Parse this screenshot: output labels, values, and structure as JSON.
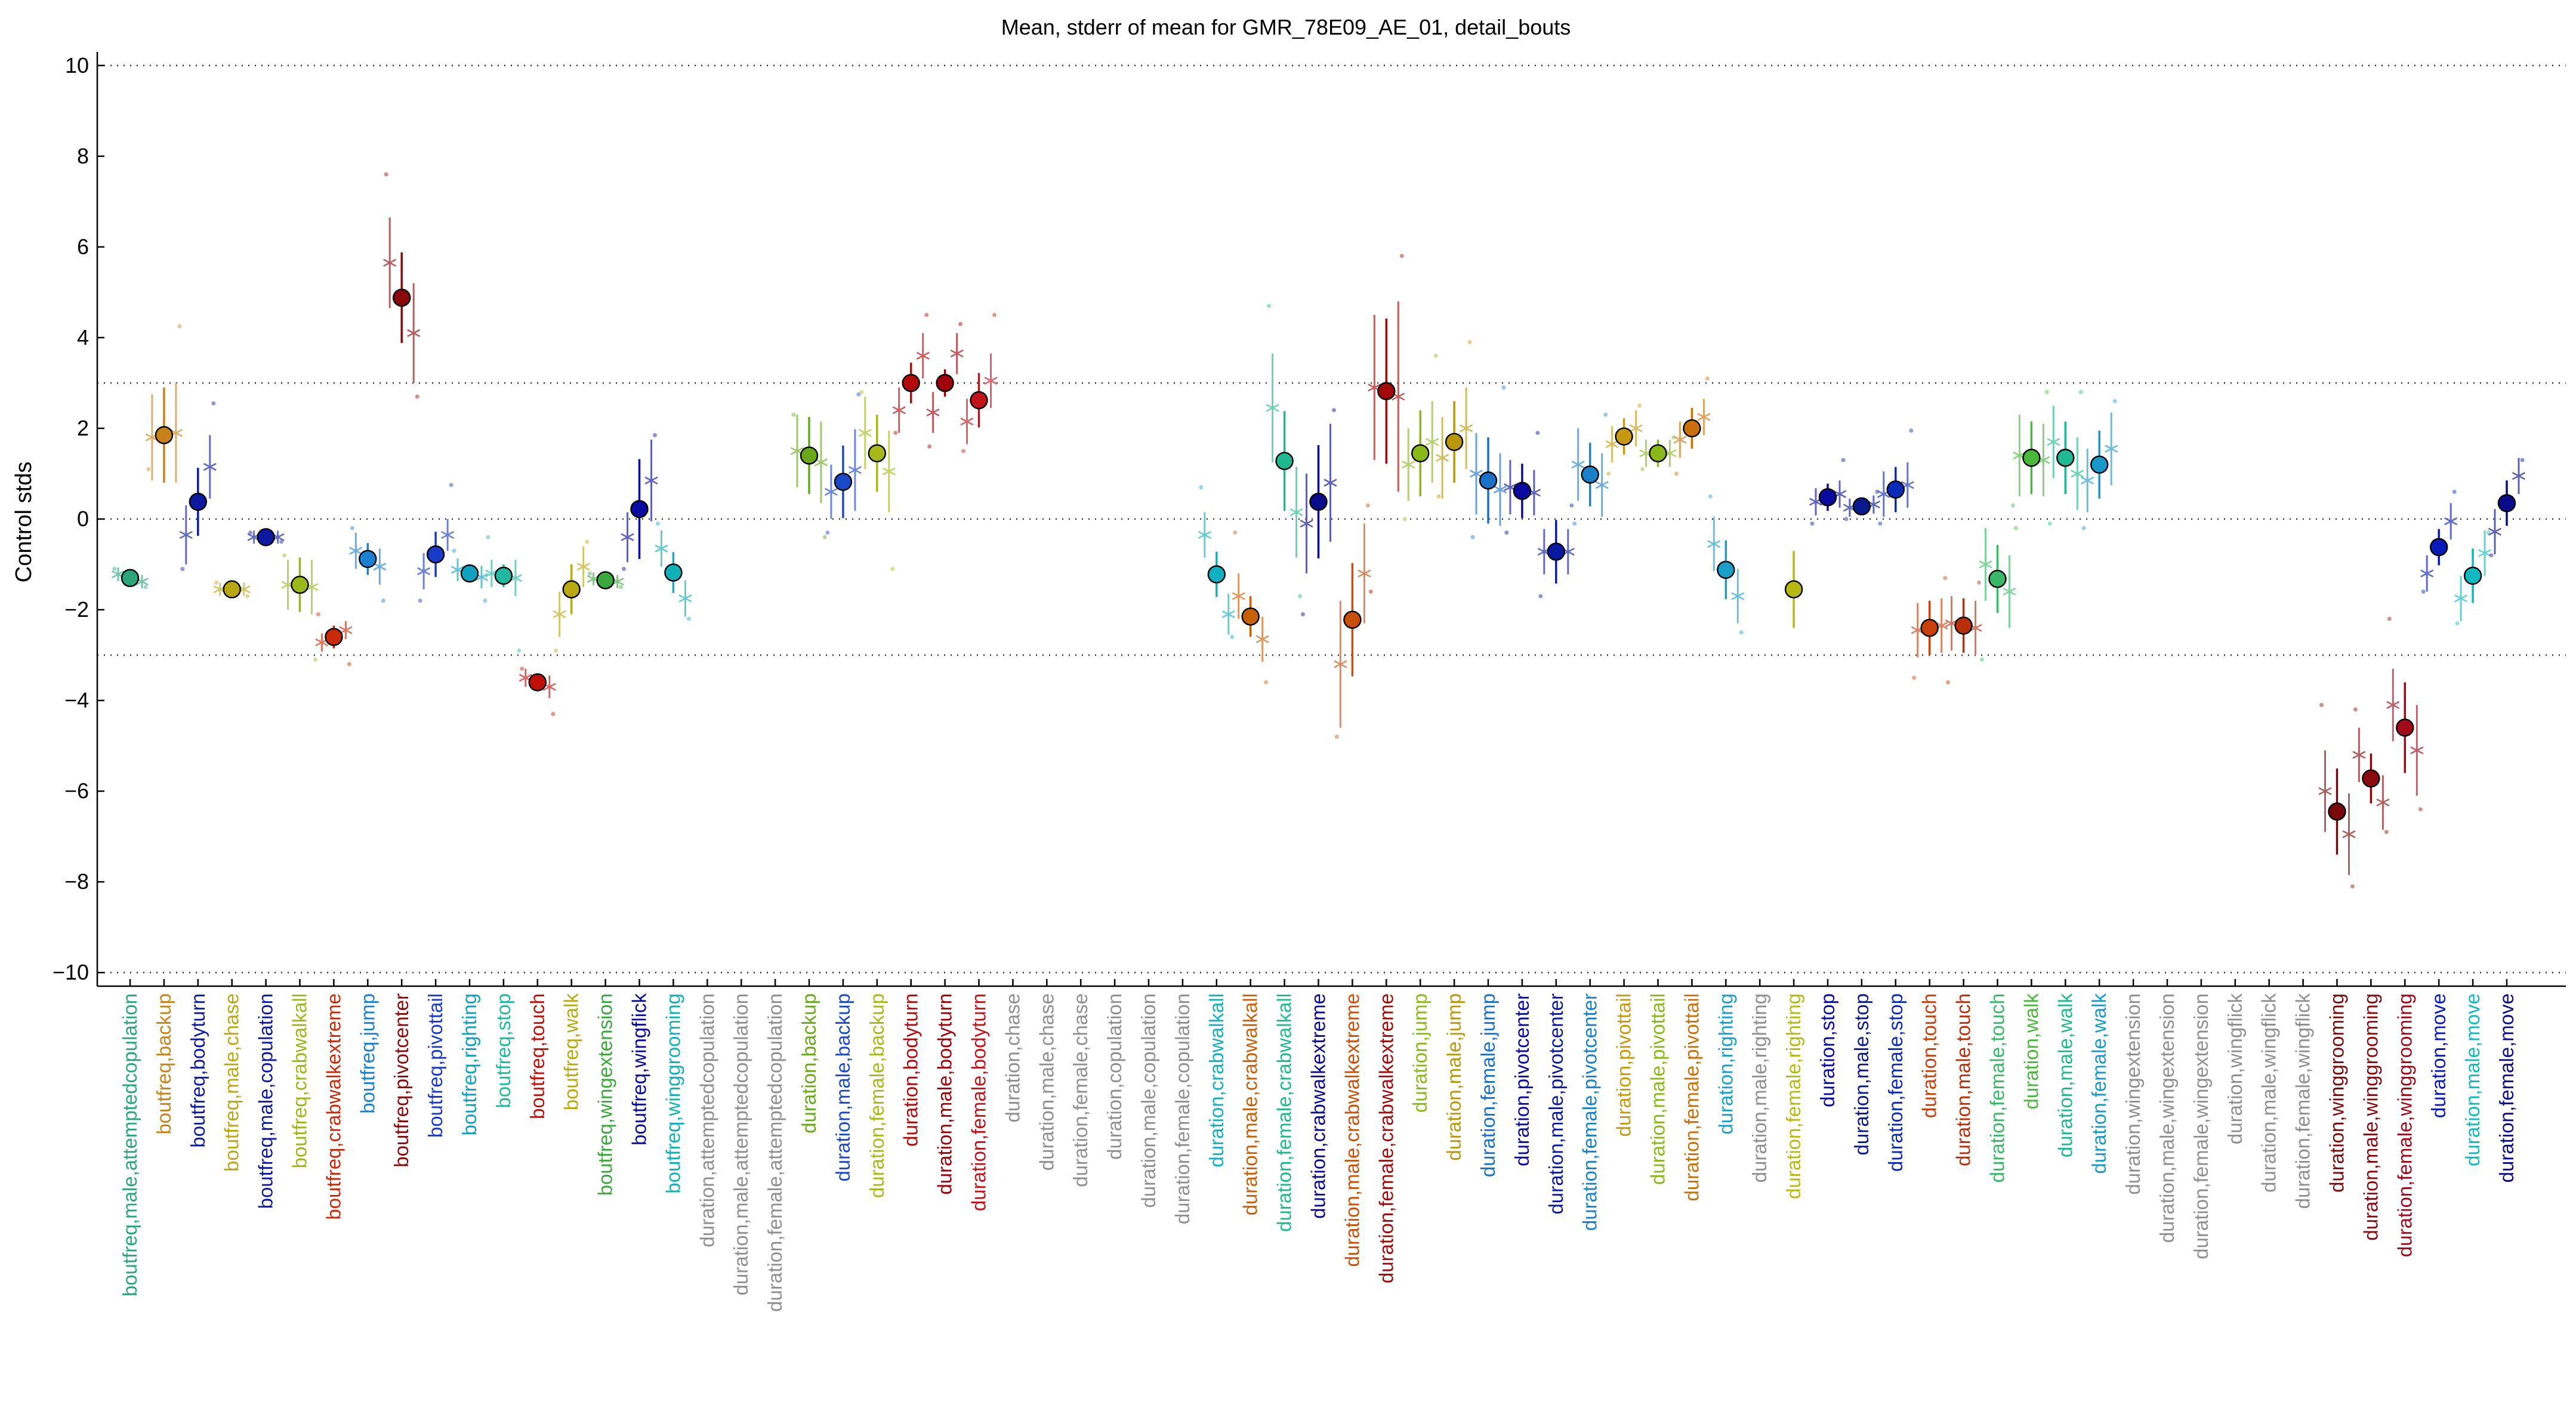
{
  "chart_data": {
    "type": "scatter",
    "title": "Mean, stderr of mean for GMR_78E09_AE_01, detail_bouts",
    "ylabel": "Control stds",
    "ylim": [
      -10.3,
      10.3
    ],
    "yticks": [
      -10,
      -8,
      -6,
      -4,
      -2,
      0,
      2,
      4,
      6,
      8,
      10
    ],
    "hlines": [
      -10,
      -3,
      0,
      3,
      10
    ],
    "grid": "dotted reference lines",
    "legend": "none",
    "categories": [
      {
        "label": "boutfreq,male,attemptedcopulation",
        "color": "#2aa67a",
        "mean": -1.3,
        "sem": 0.12,
        "sub": [
          -1.22,
          -1.38
        ],
        "subsem": [
          0.15,
          0.15
        ],
        "pt": [
          -1.1,
          -1.5
        ]
      },
      {
        "label": "boutfreq,backup",
        "color": "#c8821a",
        "mean": 1.85,
        "sem": 1.05,
        "sub": [
          1.8,
          1.9
        ],
        "subsem": [
          0.95,
          1.1
        ],
        "pt": [
          1.1,
          4.25
        ]
      },
      {
        "label": "boutfreq,bodyturn",
        "color": "#0d1aa0",
        "mean": 0.38,
        "sem": 0.75,
        "sub": [
          -0.35,
          1.15
        ],
        "subsem": [
          0.65,
          0.7
        ],
        "pt": [
          -1.1,
          2.55
        ]
      },
      {
        "label": "boutfreq,male,chase",
        "color": "#b8a812",
        "mean": -1.55,
        "sem": 0.08,
        "sub": [
          -1.55,
          -1.55
        ],
        "subsem": [
          0.06,
          0.06
        ],
        "pt": [
          -1.4,
          -1.7
        ]
      },
      {
        "label": "boutfreq,male,copulation",
        "color": "#0d1aa0",
        "mean": -0.4,
        "sem": 0.1,
        "sub": [
          -0.4,
          -0.4
        ],
        "subsem": [
          0.08,
          0.08
        ],
        "pt": [
          -0.3,
          -0.5
        ]
      },
      {
        "label": "boutfreq,crabwalkall",
        "color": "#9ab81a",
        "mean": -1.45,
        "sem": 0.6,
        "sub": [
          -1.45,
          -1.5
        ],
        "subsem": [
          0.55,
          0.6
        ],
        "pt": [
          -0.8,
          -3.1
        ]
      },
      {
        "label": "boutfreq,crabwalkextreme",
        "color": "#c82a0a",
        "mean": -2.6,
        "sem": 0.25,
        "sub": [
          -2.72,
          -2.45
        ],
        "subsem": [
          0.2,
          0.2
        ],
        "pt": [
          -2.1,
          -3.2
        ]
      },
      {
        "label": "boutfreq,jump",
        "color": "#1a80d0",
        "mean": -0.88,
        "sem": 0.35,
        "sub": [
          -0.7,
          -1.05
        ],
        "subsem": [
          0.4,
          0.4
        ],
        "pt": [
          -0.2,
          -1.8
        ]
      },
      {
        "label": "boutfreq,pivotcenter",
        "color": "#8a0a0a",
        "mean": 4.88,
        "sem": 1.0,
        "sub": [
          5.65,
          4.1
        ],
        "subsem": [
          1.0,
          1.1
        ],
        "pt": [
          7.6,
          2.7
        ]
      },
      {
        "label": "boutfreq,pivottail",
        "color": "#1a3ac8",
        "mean": -0.78,
        "sem": 0.5,
        "sub": [
          -1.15,
          -0.35
        ],
        "subsem": [
          0.4,
          0.35
        ],
        "pt": [
          -1.8,
          0.75
        ]
      },
      {
        "label": "boutfreq,righting",
        "color": "#10a0c0",
        "mean": -1.2,
        "sem": 0.2,
        "sub": [
          -1.12,
          -1.28
        ],
        "subsem": [
          0.25,
          0.25
        ],
        "pt": [
          -0.7,
          -1.8
        ]
      },
      {
        "label": "boutfreq,stop",
        "color": "#20b8a0",
        "mean": -1.25,
        "sem": 0.25,
        "sub": [
          -1.2,
          -1.3
        ],
        "subsem": [
          0.3,
          0.4
        ],
        "pt": [
          -0.4,
          -2.9
        ]
      },
      {
        "label": "boutfreq,touch",
        "color": "#c0100a",
        "mean": -3.6,
        "sem": 0.12,
        "sub": [
          -3.5,
          -3.7
        ],
        "subsem": [
          0.2,
          0.25
        ],
        "pt": [
          -3.3,
          -4.3
        ]
      },
      {
        "label": "boutfreq,walk",
        "color": "#b8a812",
        "mean": -1.55,
        "sem": 0.55,
        "sub": [
          -2.1,
          -1.05
        ],
        "subsem": [
          0.5,
          0.45
        ],
        "pt": [
          -2.9,
          -0.5
        ]
      },
      {
        "label": "boutfreq,wingextension",
        "color": "#3aa83a",
        "mean": -1.35,
        "sem": 0.12,
        "sub": [
          -1.32,
          -1.38
        ],
        "subsem": [
          0.12,
          0.12
        ],
        "pt": [
          -1.2,
          -1.5
        ]
      },
      {
        "label": "boutfreq,wingflick",
        "color": "#0a0aa0",
        "mean": 0.22,
        "sem": 1.1,
        "sub": [
          -0.4,
          0.85
        ],
        "subsem": [
          0.55,
          0.9
        ],
        "pt": [
          -1.1,
          1.85
        ]
      },
      {
        "label": "boutfreq,winggrooming",
        "color": "#10b0b8",
        "mean": -1.18,
        "sem": 0.45,
        "sub": [
          -0.65,
          -1.75
        ],
        "subsem": [
          0.4,
          0.4
        ],
        "pt": [
          -0.1,
          -2.2
        ]
      },
      {
        "label": "duration,attemptedcopulation",
        "color": "#8f8f8f"
      },
      {
        "label": "duration,male,attemptedcopulation",
        "color": "#8f8f8f"
      },
      {
        "label": "duration,female,attemptedcopulation",
        "color": "#8f8f8f"
      },
      {
        "label": "duration,backup",
        "color": "#6aa81a",
        "mean": 1.4,
        "sem": 0.85,
        "sub": [
          1.5,
          1.25
        ],
        "subsem": [
          0.8,
          0.9
        ],
        "pt": [
          2.3,
          -0.4
        ]
      },
      {
        "label": "duration,male,backup",
        "color": "#1a4ac8",
        "mean": 0.82,
        "sem": 0.8,
        "sub": [
          0.6,
          1.08
        ],
        "subsem": [
          0.6,
          0.9
        ],
        "pt": [
          -0.3,
          2.75
        ]
      },
      {
        "label": "duration,female,backup",
        "color": "#a8b81a",
        "mean": 1.45,
        "sem": 0.85,
        "sub": [
          1.9,
          1.05
        ],
        "subsem": [
          0.8,
          0.9
        ],
        "pt": [
          2.8,
          -1.1
        ]
      },
      {
        "label": "duration,bodyturn",
        "color": "#b00a0a",
        "mean": 3.0,
        "sem": 0.45,
        "sub": [
          2.4,
          3.6
        ],
        "subsem": [
          0.5,
          0.5
        ],
        "pt": [
          1.9,
          4.5
        ]
      },
      {
        "label": "duration,male,bodyturn",
        "color": "#a0000a",
        "mean": 3.0,
        "sem": 0.3,
        "sub": [
          2.35,
          3.65
        ],
        "subsem": [
          0.45,
          0.45
        ],
        "pt": [
          1.6,
          4.3
        ]
      },
      {
        "label": "duration,female,bodyturn",
        "color": "#c0141a",
        "mean": 2.62,
        "sem": 0.6,
        "sub": [
          2.15,
          3.05
        ],
        "subsem": [
          0.5,
          0.6
        ],
        "pt": [
          1.5,
          4.5
        ]
      },
      {
        "label": "duration,chase",
        "color": "#8f8f8f"
      },
      {
        "label": "duration,male,chase",
        "color": "#8f8f8f"
      },
      {
        "label": "duration,female,chase",
        "color": "#8f8f8f"
      },
      {
        "label": "duration,copulation",
        "color": "#8f8f8f"
      },
      {
        "label": "duration,male,copulation",
        "color": "#8f8f8f"
      },
      {
        "label": "duration,female,copulation",
        "color": "#8f8f8f"
      },
      {
        "label": "duration,crabwalkall",
        "color": "#10b0c0",
        "mean": -1.22,
        "sem": 0.5,
        "sub": [
          -0.35,
          -2.1
        ],
        "subsem": [
          0.5,
          0.45
        ],
        "pt": [
          0.7,
          -2.6
        ]
      },
      {
        "label": "duration,male,crabwalkall",
        "color": "#c8600a",
        "mean": -2.15,
        "sem": 0.45,
        "sub": [
          -1.7,
          -2.65
        ],
        "subsem": [
          0.5,
          0.5
        ],
        "pt": [
          -0.3,
          -3.6
        ]
      },
      {
        "label": "duration,female,crabwalkall",
        "color": "#20b890",
        "mean": 1.28,
        "sem": 1.1,
        "sub": [
          2.45,
          0.15
        ],
        "subsem": [
          1.2,
          1.0
        ],
        "pt": [
          4.7,
          -1.7
        ]
      },
      {
        "label": "duration,crabwalkextreme",
        "color": "#0a0a8a",
        "mean": 0.38,
        "sem": 1.25,
        "sub": [
          -0.1,
          0.8
        ],
        "subsem": [
          1.1,
          1.3
        ],
        "pt": [
          -2.1,
          2.4
        ]
      },
      {
        "label": "duration,male,crabwalkextreme",
        "color": "#c8500a",
        "mean": -2.22,
        "sem": 1.25,
        "sub": [
          -3.2,
          -1.2
        ],
        "subsem": [
          1.4,
          1.1
        ],
        "pt": [
          -4.8,
          0.3
        ]
      },
      {
        "label": "duration,female,crabwalkextreme",
        "color": "#a00a0a",
        "mean": 2.82,
        "sem": 1.6,
        "sub": [
          2.9,
          2.7
        ],
        "subsem": [
          1.6,
          2.1
        ],
        "pt": [
          -1.6,
          5.8
        ]
      },
      {
        "label": "duration,jump",
        "color": "#8ab81a",
        "mean": 1.45,
        "sem": 0.95,
        "sub": [
          1.2,
          1.7
        ],
        "subsem": [
          0.8,
          0.9
        ],
        "pt": [
          0.0,
          3.6
        ]
      },
      {
        "label": "duration,male,jump",
        "color": "#b8980a",
        "mean": 1.7,
        "sem": 0.9,
        "sub": [
          1.35,
          2.0
        ],
        "subsem": [
          0.9,
          0.9
        ],
        "pt": [
          0.5,
          3.9
        ]
      },
      {
        "label": "duration,female,jump",
        "color": "#1a70c8",
        "mean": 0.85,
        "sem": 0.95,
        "sub": [
          1.0,
          0.65
        ],
        "subsem": [
          0.9,
          0.8
        ],
        "pt": [
          -0.4,
          2.9
        ]
      },
      {
        "label": "duration,pivotcenter",
        "color": "#0a0aa0",
        "mean": 0.62,
        "sem": 0.6,
        "sub": [
          0.7,
          0.58
        ],
        "subsem": [
          0.6,
          0.5
        ],
        "pt": [
          -0.3,
          1.9
        ]
      },
      {
        "label": "duration,male,pivotcenter",
        "color": "#0a1aa0",
        "mean": -0.72,
        "sem": 0.7,
        "sub": [
          -0.72,
          -0.72
        ],
        "subsem": [
          0.5,
          0.5
        ],
        "pt": [
          -1.7,
          0.3
        ]
      },
      {
        "label": "duration,female,pivotcenter",
        "color": "#1a80c8",
        "mean": 0.98,
        "sem": 0.7,
        "sub": [
          1.2,
          0.75
        ],
        "subsem": [
          0.8,
          0.7
        ],
        "pt": [
          -0.1,
          2.3
        ]
      },
      {
        "label": "duration,pivottail",
        "color": "#c89810",
        "mean": 1.82,
        "sem": 0.4,
        "sub": [
          1.65,
          2.0
        ],
        "subsem": [
          0.4,
          0.4
        ],
        "pt": [
          1.0,
          2.5
        ]
      },
      {
        "label": "duration,male,pivottail",
        "color": "#8ab81a",
        "mean": 1.45,
        "sem": 0.3,
        "sub": [
          1.45,
          1.45
        ],
        "subsem": [
          0.3,
          0.3
        ],
        "pt": [
          1.1,
          1.8
        ]
      },
      {
        "label": "duration,female,pivottail",
        "color": "#c8700a",
        "mean": 2.0,
        "sem": 0.45,
        "sub": [
          1.75,
          2.25
        ],
        "subsem": [
          0.4,
          0.4
        ],
        "pt": [
          1.0,
          3.1
        ]
      },
      {
        "label": "duration,righting",
        "color": "#1aa0c8",
        "mean": -1.12,
        "sem": 0.65,
        "sub": [
          -0.55,
          -1.7
        ],
        "subsem": [
          0.6,
          0.6
        ],
        "pt": [
          0.5,
          -2.5
        ]
      },
      {
        "label": "duration,male,righting",
        "color": "#8f8f8f"
      },
      {
        "label": "duration,female,righting",
        "color": "#b8b812",
        "mean": -1.55,
        "sem": 0.85,
        "sub": [],
        "subsem": [],
        "pt": []
      },
      {
        "label": "duration,stop",
        "color": "#0a0aa0",
        "mean": 0.48,
        "sem": 0.3,
        "sub": [
          0.38,
          0.55
        ],
        "subsem": [
          0.3,
          0.3
        ],
        "pt": [
          -0.1,
          1.3
        ]
      },
      {
        "label": "duration,male,stop",
        "color": "#0a1a8a",
        "mean": 0.28,
        "sem": 0.18,
        "sub": [
          0.25,
          0.32
        ],
        "subsem": [
          0.2,
          0.2
        ],
        "pt": [
          0.0,
          0.6
        ]
      },
      {
        "label": "duration,female,stop",
        "color": "#0a2ab8",
        "mean": 0.65,
        "sem": 0.5,
        "sub": [
          0.55,
          0.75
        ],
        "subsem": [
          0.5,
          0.5
        ],
        "pt": [
          -0.1,
          1.95
        ]
      },
      {
        "label": "duration,touch",
        "color": "#c8400a",
        "mean": -2.4,
        "sem": 0.6,
        "sub": [
          -2.45,
          -2.35
        ],
        "subsem": [
          0.6,
          0.6
        ],
        "pt": [
          -3.5,
          -1.3
        ]
      },
      {
        "label": "duration,male,touch",
        "color": "#b8300a",
        "mean": -2.35,
        "sem": 0.6,
        "sub": [
          -2.3,
          -2.4
        ],
        "subsem": [
          0.6,
          0.6
        ],
        "pt": [
          -3.6,
          -1.4
        ]
      },
      {
        "label": "duration,female,touch",
        "color": "#3ab86a",
        "mean": -1.32,
        "sem": 0.75,
        "sub": [
          -1.0,
          -1.6
        ],
        "subsem": [
          0.8,
          0.8
        ],
        "pt": [
          -3.1,
          0.3
        ]
      },
      {
        "label": "duration,walk",
        "color": "#4ab83a",
        "mean": 1.35,
        "sem": 0.8,
        "sub": [
          1.4,
          1.3
        ],
        "subsem": [
          0.9,
          0.8
        ],
        "pt": [
          -0.2,
          2.8
        ]
      },
      {
        "label": "duration,male,walk",
        "color": "#20b890",
        "mean": 1.35,
        "sem": 0.8,
        "sub": [
          1.7,
          1.0
        ],
        "subsem": [
          0.8,
          0.8
        ],
        "pt": [
          -0.1,
          2.8
        ]
      },
      {
        "label": "duration,female,walk",
        "color": "#1a98c8",
        "mean": 1.2,
        "sem": 0.75,
        "sub": [
          0.85,
          1.55
        ],
        "subsem": [
          0.7,
          0.8
        ],
        "pt": [
          -0.2,
          2.6
        ]
      },
      {
        "label": "duration,wingextension",
        "color": "#8f8f8f"
      },
      {
        "label": "duration,male,wingextension",
        "color": "#8f8f8f"
      },
      {
        "label": "duration,female,wingextension",
        "color": "#8f8f8f"
      },
      {
        "label": "duration,wingflick",
        "color": "#8f8f8f"
      },
      {
        "label": "duration,male,wingflick",
        "color": "#8f8f8f"
      },
      {
        "label": "duration,female,wingflick",
        "color": "#8f8f8f"
      },
      {
        "label": "duration,winggrooming",
        "color": "#7a0a0a",
        "mean": -6.45,
        "sem": 0.95,
        "sub": [
          -6.0,
          -6.95
        ],
        "subsem": [
          0.9,
          0.9
        ],
        "pt": [
          -4.1,
          -8.1
        ]
      },
      {
        "label": "duration,male,winggrooming",
        "color": "#8a0a10",
        "mean": -5.72,
        "sem": 0.55,
        "sub": [
          -5.2,
          -6.25
        ],
        "subsem": [
          0.6,
          0.6
        ],
        "pt": [
          -4.2,
          -6.9
        ]
      },
      {
        "label": "duration,female,winggrooming",
        "color": "#a00a1a",
        "mean": -4.6,
        "sem": 1.0,
        "sub": [
          -4.1,
          -5.1
        ],
        "subsem": [
          0.8,
          1.0
        ],
        "pt": [
          -2.2,
          -6.4
        ]
      },
      {
        "label": "duration,move",
        "color": "#0a1ab8",
        "mean": -0.62,
        "sem": 0.4,
        "sub": [
          -1.2,
          -0.05
        ],
        "subsem": [
          0.4,
          0.4
        ],
        "pt": [
          -1.6,
          0.6
        ]
      },
      {
        "label": "duration,male,move",
        "color": "#10b8c0",
        "mean": -1.25,
        "sem": 0.6,
        "sub": [
          -1.75,
          -0.75
        ],
        "subsem": [
          0.5,
          0.5
        ],
        "pt": [
          -2.3,
          -0.3
        ]
      },
      {
        "label": "duration,female,move",
        "color": "#0a0a8a",
        "mean": 0.35,
        "sem": 0.5,
        "sub": [
          -0.28,
          0.95
        ],
        "subsem": [
          0.5,
          0.4
        ],
        "pt": [
          -0.8,
          1.3
        ]
      }
    ]
  }
}
